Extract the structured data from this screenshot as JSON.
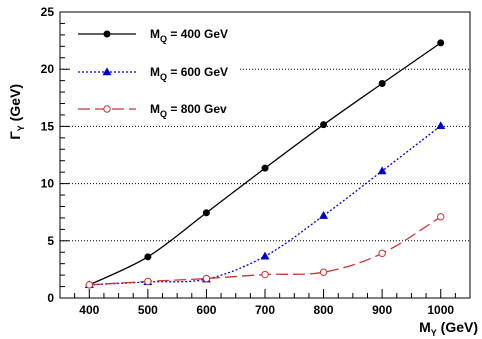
{
  "chart_data": {
    "type": "line",
    "title": "",
    "xlabel": {
      "main": "M",
      "sub": "Y",
      "rest": " (GeV)"
    },
    "ylabel": {
      "main": "Γ",
      "sub": "Y",
      "rest": " (GeV)"
    },
    "xlim": [
      350,
      1050
    ],
    "ylim": [
      0,
      25
    ],
    "x_ticks": [
      400,
      500,
      600,
      700,
      800,
      900,
      1000
    ],
    "y_ticks": [
      0,
      5,
      10,
      15,
      20,
      25
    ],
    "grid": "horizontal dotted",
    "legend_position": "top-left",
    "x": [
      400,
      500,
      600,
      700,
      800,
      900,
      1000
    ],
    "series": [
      {
        "name": {
          "main": "M",
          "sub": "Q",
          "rest": " = 400 GeV"
        },
        "values": [
          1.15,
          3.6,
          7.45,
          11.35,
          15.15,
          18.75,
          22.3
        ],
        "color": "#000000",
        "dash": "solid",
        "marker": "filled-circle"
      },
      {
        "name": {
          "main": "M",
          "sub": "Q",
          "rest": " = 600 GeV"
        },
        "values": [
          1.15,
          1.4,
          1.65,
          3.65,
          7.2,
          11.1,
          15.05
        ],
        "color": "#0000cc",
        "dash": "dotted",
        "marker": "filled-triangle"
      },
      {
        "name": {
          "main": "M",
          "sub": "Q",
          "rest": " = 800 Gev"
        },
        "values": [
          1.15,
          1.45,
          1.7,
          2.05,
          2.25,
          3.9,
          7.1
        ],
        "color": "#cc3333",
        "dash": "long-dash",
        "marker": "open-circle"
      }
    ]
  }
}
